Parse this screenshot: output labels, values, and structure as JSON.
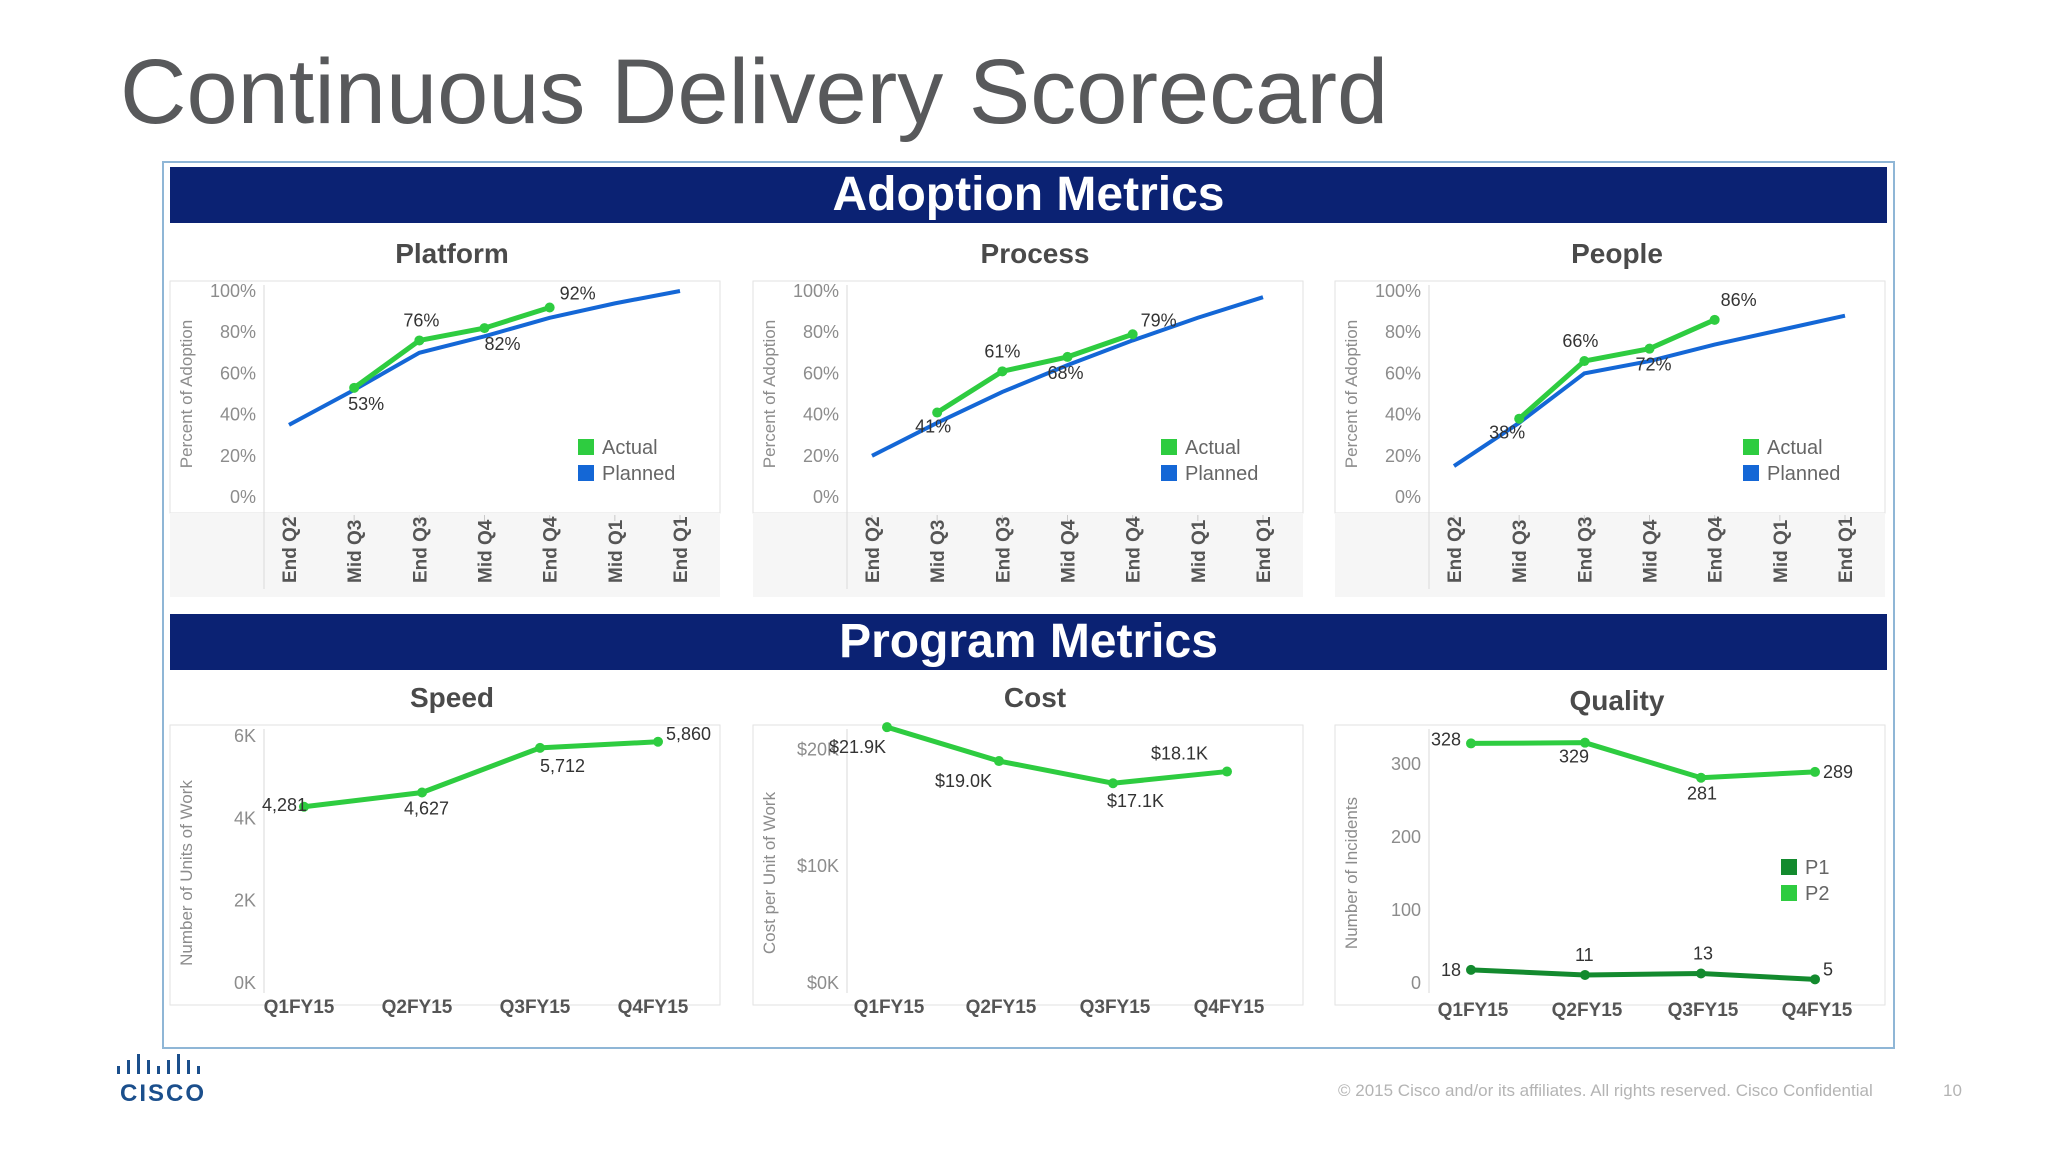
{
  "slide": {
    "title": "Continuous Delivery Scorecard",
    "footer": "© 2015  Cisco and/or its affiliates. All rights reserved.    Cisco Confidential",
    "page_number": "10",
    "logo_text": "CISCO"
  },
  "sections": {
    "adoption": "Adoption Metrics",
    "program": "Program Metrics"
  },
  "colors": {
    "banner": "#0b2273",
    "actual": "#2ecc40",
    "planned": "#1467d6",
    "p1": "#138a2e",
    "p2": "#2ecc40"
  },
  "chart_data": [
    {
      "type": "line",
      "title": "Platform",
      "ylabel": "Percent of Adoption",
      "categories": [
        "End Q2",
        "Mid Q3",
        "End Q3",
        "Mid Q4",
        "End Q4",
        "Mid Q1",
        "End Q1"
      ],
      "yticks": [
        "0%",
        "20%",
        "40%",
        "60%",
        "80%",
        "100%"
      ],
      "ylim": [
        0,
        100
      ],
      "legend": "bottom-right",
      "series": [
        {
          "name": "Actual",
          "values": [
            null,
            53,
            76,
            82,
            92,
            null,
            null
          ],
          "labels": [
            "",
            "53%",
            "76%",
            "82%",
            "92%",
            "",
            ""
          ]
        },
        {
          "name": "Planned",
          "values": [
            35,
            52,
            70,
            78,
            87,
            94,
            100
          ]
        }
      ]
    },
    {
      "type": "line",
      "title": "Process",
      "ylabel": "Percent of Adoption",
      "categories": [
        "End Q2",
        "Mid Q3",
        "End Q3",
        "Mid Q4",
        "End Q4",
        "Mid Q1",
        "End Q1"
      ],
      "yticks": [
        "0%",
        "20%",
        "40%",
        "60%",
        "80%",
        "100%"
      ],
      "ylim": [
        0,
        100
      ],
      "legend": "bottom-right",
      "series": [
        {
          "name": "Actual",
          "values": [
            null,
            41,
            61,
            68,
            79,
            null,
            null
          ],
          "labels": [
            "",
            "41%",
            "61%",
            "68%",
            "79%",
            "",
            ""
          ]
        },
        {
          "name": "Planned",
          "values": [
            20,
            36,
            51,
            64,
            76,
            87,
            97
          ]
        }
      ]
    },
    {
      "type": "line",
      "title": "People",
      "ylabel": "Percent of Adoption",
      "categories": [
        "End Q2",
        "Mid Q3",
        "End Q3",
        "Mid Q4",
        "End Q4",
        "Mid Q1",
        "End Q1"
      ],
      "yticks": [
        "0%",
        "20%",
        "40%",
        "60%",
        "80%",
        "100%"
      ],
      "ylim": [
        0,
        100
      ],
      "legend": "bottom-right",
      "series": [
        {
          "name": "Actual",
          "values": [
            null,
            38,
            66,
            72,
            86,
            null,
            null
          ],
          "labels": [
            "",
            "38%",
            "66%",
            "72%",
            "86%",
            "",
            ""
          ]
        },
        {
          "name": "Planned",
          "values": [
            15,
            36,
            60,
            66,
            74,
            81,
            88
          ]
        }
      ]
    },
    {
      "type": "line",
      "title": "Speed",
      "ylabel": "Number of Units of Work",
      "categories": [
        "Q1FY15",
        "Q2FY15",
        "Q3FY15",
        "Q4FY15"
      ],
      "yticks": [
        "0K",
        "2K",
        "4K",
        "6K"
      ],
      "ylim": [
        0,
        6000
      ],
      "series": [
        {
          "name": "",
          "values": [
            4281,
            4627,
            5712,
            5860
          ],
          "labels": [
            "4,281",
            "4,627",
            "5,712",
            "5,860"
          ]
        }
      ]
    },
    {
      "type": "line",
      "title": "Cost",
      "ylabel": "Cost per Unit of Work",
      "categories": [
        "Q1FY15",
        "Q2FY15",
        "Q3FY15",
        "Q4FY15"
      ],
      "yticks": [
        "$0K",
        "$10K",
        "$20K"
      ],
      "ylim": [
        0,
        20000
      ],
      "series": [
        {
          "name": "",
          "values": [
            21900,
            19000,
            17100,
            18100
          ],
          "labels": [
            "$21.9K",
            "$19.0K",
            "$17.1K",
            "$18.1K"
          ]
        }
      ]
    },
    {
      "type": "line",
      "title": "Quality",
      "ylabel": "Number of Incidents",
      "categories": [
        "Q1FY15",
        "Q2FY15",
        "Q3FY15",
        "Q4FY15"
      ],
      "yticks": [
        "0",
        "100",
        "200",
        "300"
      ],
      "ylim": [
        0,
        300
      ],
      "legend": "right",
      "series": [
        {
          "name": "P1",
          "values": [
            18,
            11,
            13,
            5
          ],
          "labels": [
            "18",
            "11",
            "13",
            "5"
          ]
        },
        {
          "name": "P2",
          "values": [
            328,
            329,
            281,
            289
          ],
          "labels": [
            "328",
            "329",
            "281",
            "289"
          ]
        }
      ]
    }
  ]
}
